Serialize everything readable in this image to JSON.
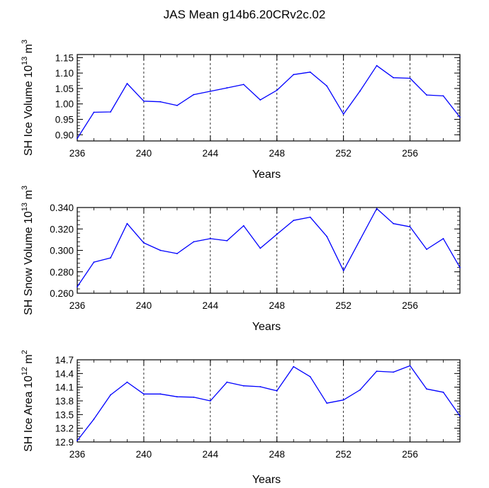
{
  "figure_title": "JAS Mean g14b6.20CRv2c.02",
  "colors": {
    "series": "#0000ff",
    "axes": "#000000",
    "grid": "#000000",
    "background": "#ffffff"
  },
  "chart_data": [
    {
      "type": "line",
      "name": "ice-volume",
      "title": "",
      "xlabel": "Years",
      "ylabel": {
        "main": "SH Ice Volume 10",
        "exp": "13",
        "unit": " m",
        "unit_exp": "3"
      },
      "xlim": [
        236,
        259
      ],
      "ylim": [
        0.88,
        1.16
      ],
      "xticks": [
        236,
        240,
        244,
        248,
        252,
        256
      ],
      "yticks": [
        0.9,
        0.95,
        1.0,
        1.05,
        1.1,
        1.15
      ],
      "ytick_labels": [
        "0.90",
        "0.95",
        "1.00",
        "1.05",
        "1.10",
        "1.15"
      ],
      "grid_x": [
        240,
        244,
        248,
        252,
        256
      ],
      "x": [
        236,
        237,
        238,
        239,
        240,
        241,
        242,
        243,
        244,
        245,
        246,
        247,
        248,
        249,
        250,
        251,
        252,
        253,
        254,
        255,
        256,
        257,
        258,
        259
      ],
      "values": [
        0.888,
        0.973,
        0.974,
        1.066,
        1.009,
        1.007,
        0.995,
        1.03,
        1.041,
        1.052,
        1.063,
        1.013,
        1.044,
        1.095,
        1.103,
        1.058,
        0.967,
        1.042,
        1.124,
        1.085,
        1.083,
        1.029,
        1.026,
        0.957
      ]
    },
    {
      "type": "line",
      "name": "snow-volume",
      "title": "",
      "xlabel": "Years",
      "ylabel": {
        "main": "SH Snow Volume 10",
        "exp": "13",
        "unit": " m",
        "unit_exp": "3"
      },
      "xlim": [
        236,
        259
      ],
      "ylim": [
        0.26,
        0.34
      ],
      "xticks": [
        236,
        240,
        244,
        248,
        252,
        256
      ],
      "yticks": [
        0.26,
        0.28,
        0.3,
        0.32,
        0.34
      ],
      "ytick_labels": [
        "0.260",
        "0.280",
        "0.300",
        "0.320",
        "0.340"
      ],
      "grid_x": [
        240,
        244,
        248,
        252,
        256
      ],
      "x": [
        236,
        237,
        238,
        239,
        240,
        241,
        242,
        243,
        244,
        245,
        246,
        247,
        248,
        249,
        250,
        251,
        252,
        253,
        254,
        255,
        256,
        257,
        258,
        259
      ],
      "values": [
        0.266,
        0.289,
        0.293,
        0.325,
        0.307,
        0.3,
        0.297,
        0.308,
        0.311,
        0.309,
        0.323,
        0.302,
        0.315,
        0.328,
        0.331,
        0.313,
        0.281,
        0.31,
        0.339,
        0.325,
        0.322,
        0.301,
        0.311,
        0.284
      ]
    },
    {
      "type": "line",
      "name": "ice-area",
      "title": "",
      "xlabel": "Years",
      "ylabel": {
        "main": "SH Ice Area 10",
        "exp": "12",
        "unit": " m",
        "unit_exp": "2"
      },
      "xlim": [
        236,
        259
      ],
      "ylim": [
        12.9,
        14.7
      ],
      "xticks": [
        236,
        240,
        244,
        248,
        252,
        256
      ],
      "yticks": [
        12.9,
        13.2,
        13.5,
        13.8,
        14.1,
        14.4,
        14.7
      ],
      "ytick_labels": [
        "12.9",
        "13.2",
        "13.5",
        "13.8",
        "14.1",
        "14.4",
        "14.7"
      ],
      "grid_x": [
        240,
        244,
        248,
        252,
        256
      ],
      "x": [
        236,
        237,
        238,
        239,
        240,
        241,
        242,
        243,
        244,
        245,
        246,
        247,
        248,
        249,
        250,
        251,
        252,
        253,
        254,
        255,
        256,
        257,
        258,
        259
      ],
      "values": [
        12.93,
        13.4,
        13.93,
        14.21,
        13.95,
        13.95,
        13.89,
        13.88,
        13.8,
        14.21,
        14.13,
        14.11,
        14.02,
        14.55,
        14.33,
        13.75,
        13.82,
        14.04,
        14.45,
        14.43,
        14.57,
        14.06,
        13.99,
        13.47
      ]
    }
  ]
}
